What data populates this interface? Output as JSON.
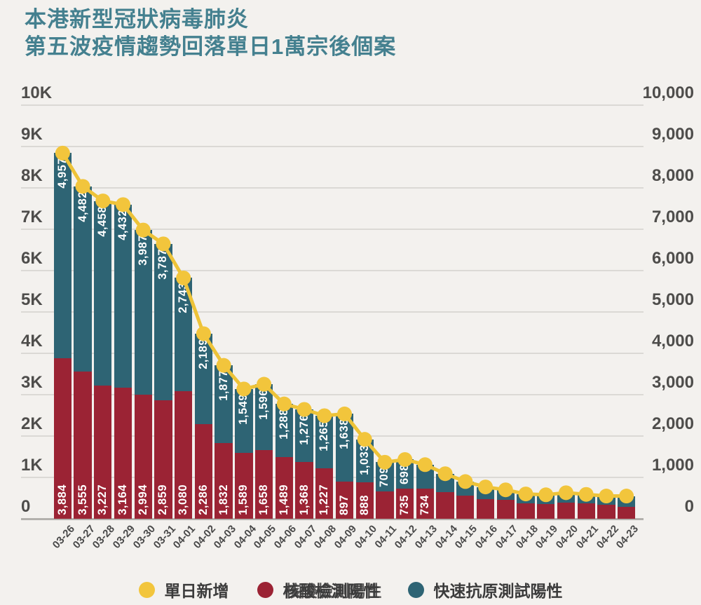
{
  "title": {
    "line1": "本港新型冠狀病毒肺炎",
    "line2": "第五波疫情趨勢回落單日1萬宗後個案"
  },
  "colors": {
    "title": "#44808f",
    "nucleic": "#9b2334",
    "rat": "#2e6474",
    "daily_dot": "#f2c53c",
    "daily_line": "#edc338",
    "grid": "#dbd9d5",
    "baseline": "#b3b1ad",
    "axis_text": "#4e4d4b",
    "x_text": "#4a4a4a",
    "bar_label_text": "#ffffff",
    "legend_text": "#3b3b3b",
    "background": "#f3f1ee"
  },
  "axes": {
    "left_ticks": [
      "10K",
      "9K",
      "8K",
      "7K",
      "6K",
      "5K",
      "4K",
      "3K",
      "2K",
      "1K",
      "0"
    ],
    "right_ticks": [
      "10,000",
      "9,000",
      "8,000",
      "7,000",
      "6,000",
      "5,000",
      "4,000",
      "3,000",
      "2,000",
      "1,000",
      "0"
    ],
    "ymax": 10000
  },
  "legend": [
    {
      "key": "daily_dot",
      "label": "單日新增"
    },
    {
      "key": "nucleic",
      "label": "核酸檢測陽性"
    },
    {
      "key": "rat",
      "label": "快速抗原測試陽性"
    }
  ],
  "chart_data": {
    "type": "bar",
    "subtype": "stacked-bar-with-line-overlay",
    "title": "本港新型冠狀病毒肺炎 第五波疫情趨勢回落單日1萬宗後個案",
    "xlabel": "",
    "ylabel": "",
    "ylim": [
      0,
      10000
    ],
    "grid": true,
    "legend_position": "bottom",
    "categories": [
      "03-26",
      "03-27",
      "03-28",
      "03-29",
      "03-30",
      "03-31",
      "04-01",
      "04-02",
      "04-03",
      "04-04",
      "04-05",
      "04-06",
      "04-07",
      "04-08",
      "04-09",
      "04-10",
      "04-11",
      "04-12",
      "04-13",
      "04-14",
      "04-15",
      "04-16",
      "04-17",
      "04-18",
      "04-19",
      "04-20",
      "04-21",
      "04-22",
      "04-23"
    ],
    "series": [
      {
        "name": "核酸檢測陽性",
        "role": "stack-bottom",
        "color_key": "nucleic",
        "values": [
          3884,
          3555,
          3227,
          3164,
          2994,
          2859,
          3080,
          2286,
          1832,
          1589,
          1658,
          1489,
          1368,
          1227,
          897,
          888,
          658,
          735,
          734,
          640,
          560,
          480,
          450,
          380,
          360,
          390,
          370,
          340,
          290
        ],
        "labels": [
          "3,884",
          "3,555",
          "3,227",
          "3,164",
          "2,994",
          "2,859",
          "3,080",
          "2,286",
          "1,832",
          "1,589",
          "1,658",
          "1,489",
          "1,368",
          "1,227",
          "897",
          "888",
          "",
          "735",
          "734",
          "",
          "",
          "",
          "",
          "",
          "",
          "",
          "",
          "",
          ""
        ]
      },
      {
        "name": "快速抗原測試陽性",
        "role": "stack-top",
        "color_key": "rat",
        "values": [
          4957,
          4482,
          4458,
          4432,
          3987,
          3787,
          2743,
          2189,
          1877,
          1549,
          1596,
          1288,
          1276,
          1265,
          1638,
          1033,
          709,
          698,
          575,
          450,
          340,
          290,
          250,
          220,
          220,
          240,
          220,
          210,
          260
        ],
        "labels": [
          "4,957",
          "4,482",
          "4,458",
          "4,432",
          "3,987",
          "3,787",
          "2,743",
          "2,189",
          "1,877",
          "1,549",
          "1,596",
          "1,288",
          "1,276",
          "1,265",
          "1,638",
          "1,033",
          "709",
          "698",
          "",
          "",
          "",
          "",
          "",
          "",
          "",
          "",
          "",
          "",
          ""
        ]
      },
      {
        "name": "單日新增",
        "role": "line",
        "color_key": "daily_dot",
        "values": [
          8841,
          8037,
          7685,
          7596,
          6981,
          6646,
          5823,
          4475,
          3709,
          3138,
          3254,
          2777,
          2644,
          2492,
          2535,
          1921,
          1367,
          1433,
          1309,
          1090,
          900,
          770,
          700,
          600,
          580,
          630,
          590,
          550,
          550
        ]
      }
    ]
  }
}
